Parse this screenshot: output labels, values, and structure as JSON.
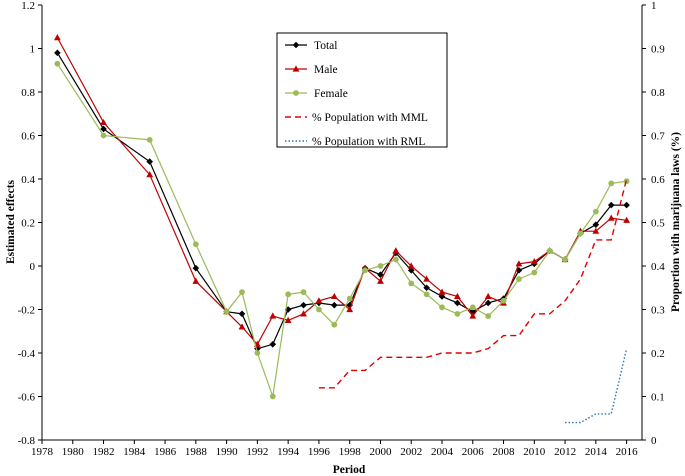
{
  "chart_data": {
    "type": "line",
    "xlabel": "Period",
    "ylabel_left": "Estimated effects",
    "ylabel_right": "Proportion with marijuana laws (%)",
    "xlim": [
      1978,
      2017
    ],
    "ylim_left": [
      -0.8,
      1.2
    ],
    "ylim_right": [
      0,
      1
    ],
    "x_ticks": [
      "1978",
      "1980",
      "1982",
      "1984",
      "1986",
      "1988",
      "1990",
      "1992",
      "1994",
      "1996",
      "1998",
      "2000",
      "2002",
      "2004",
      "2006",
      "2008",
      "2010",
      "2012",
      "2014",
      "2016"
    ],
    "y_ticks_left": [
      "-0.8",
      "-0.6",
      "-0.4",
      "-0.2",
      "0",
      "0.2",
      "0.4",
      "0.6",
      "0.8",
      "1",
      "1.2"
    ],
    "y_ticks_right": [
      "0",
      "0.1",
      "0.2",
      "0.3",
      "0.4",
      "0.5",
      "0.6",
      "0.7",
      "0.8",
      "0.9",
      "1"
    ],
    "grid": false,
    "legend_position": "top-center",
    "series": [
      {
        "name": "Total",
        "axis": "left",
        "color": "#000000",
        "marker": "diamond",
        "dash": "solid",
        "x": [
          1979,
          1982,
          1985,
          1988,
          1990,
          1991,
          1992,
          1993,
          1994,
          1995,
          1996,
          1997,
          1998,
          1999,
          2000,
          2001,
          2002,
          2003,
          2004,
          2005,
          2006,
          2007,
          2008,
          2009,
          2010,
          2011,
          2012,
          2013,
          2014,
          2015,
          2016
        ],
        "values": [
          0.98,
          0.63,
          0.48,
          -0.01,
          -0.21,
          -0.22,
          -0.38,
          -0.36,
          -0.2,
          -0.18,
          -0.17,
          -0.18,
          -0.18,
          -0.01,
          -0.04,
          0.06,
          -0.02,
          -0.1,
          -0.14,
          -0.17,
          -0.21,
          -0.17,
          -0.15,
          -0.02,
          0.01,
          0.07,
          0.03,
          0.15,
          0.19,
          0.28,
          0.28
        ]
      },
      {
        "name": "Male",
        "axis": "left",
        "color": "#c00000",
        "marker": "triangle",
        "dash": "solid",
        "x": [
          1979,
          1982,
          1985,
          1988,
          1990,
          1991,
          1992,
          1993,
          1994,
          1995,
          1996,
          1997,
          1998,
          1999,
          2000,
          2001,
          2002,
          2003,
          2004,
          2005,
          2006,
          2007,
          2008,
          2009,
          2010,
          2011,
          2012,
          2013,
          2014,
          2015,
          2016
        ],
        "values": [
          1.05,
          0.66,
          0.42,
          -0.07,
          -0.21,
          -0.28,
          -0.36,
          -0.23,
          -0.25,
          -0.22,
          -0.16,
          -0.14,
          -0.2,
          -0.01,
          -0.07,
          0.07,
          0.0,
          -0.06,
          -0.12,
          -0.14,
          -0.23,
          -0.14,
          -0.17,
          0.01,
          0.02,
          0.07,
          0.03,
          0.16,
          0.16,
          0.22,
          0.21
        ]
      },
      {
        "name": "Female",
        "axis": "left",
        "color": "#9bbb59",
        "marker": "circle",
        "dash": "solid",
        "x": [
          1979,
          1982,
          1985,
          1988,
          1990,
          1991,
          1992,
          1993,
          1994,
          1995,
          1996,
          1997,
          1998,
          1999,
          2000,
          2001,
          2002,
          2003,
          2004,
          2005,
          2006,
          2007,
          2008,
          2009,
          2010,
          2011,
          2012,
          2013,
          2014,
          2015,
          2016
        ],
        "values": [
          0.93,
          0.6,
          0.58,
          0.1,
          -0.21,
          -0.12,
          -0.4,
          -0.6,
          -0.13,
          -0.12,
          -0.2,
          -0.27,
          -0.15,
          -0.02,
          0.0,
          0.03,
          -0.08,
          -0.13,
          -0.19,
          -0.22,
          -0.19,
          -0.23,
          -0.16,
          -0.06,
          -0.03,
          0.07,
          0.03,
          0.15,
          0.25,
          0.38,
          0.39
        ]
      },
      {
        "name": "% Population with MML",
        "axis": "right",
        "color": "#e00000",
        "marker": "none",
        "dash": "6,4",
        "x": [
          1996,
          1997,
          1998,
          1999,
          2000,
          2001,
          2002,
          2003,
          2004,
          2005,
          2006,
          2007,
          2008,
          2009,
          2010,
          2011,
          2012,
          2013,
          2014,
          2015,
          2016
        ],
        "values": [
          0.12,
          0.12,
          0.16,
          0.16,
          0.19,
          0.19,
          0.19,
          0.19,
          0.2,
          0.2,
          0.2,
          0.21,
          0.24,
          0.24,
          0.29,
          0.29,
          0.32,
          0.37,
          0.46,
          0.46,
          0.6
        ]
      },
      {
        "name": "% Population with RML",
        "axis": "right",
        "color": "#2e75b6",
        "marker": "none",
        "dash": "1.5,2",
        "x": [
          2012,
          2013,
          2014,
          2015,
          2016
        ],
        "values": [
          0.04,
          0.04,
          0.06,
          0.06,
          0.21
        ]
      }
    ]
  }
}
